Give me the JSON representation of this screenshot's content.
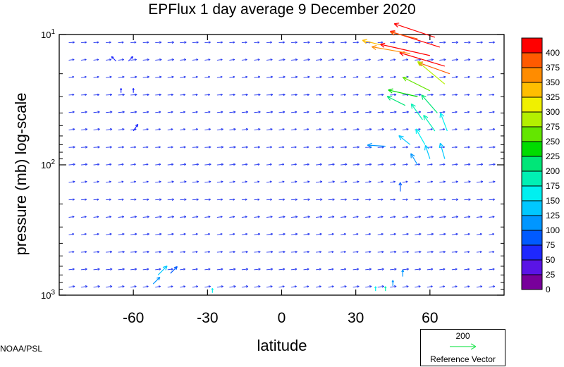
{
  "title": "EPFlux  1 day average  9 December  2020",
  "credit": "NOAA/PSL",
  "reference": {
    "value": "200",
    "label": "Reference Vector",
    "color": "#2ee65a"
  },
  "chart_data": {
    "type": "quiver",
    "title": "EPFlux  1 day average  9 December  2020",
    "xlabel": "latitude",
    "ylabel": "pressure (mb)  log-scale",
    "xlim": [
      -90,
      90
    ],
    "ylim": [
      1000,
      10
    ],
    "yscale": "log",
    "xticks": [
      -60,
      -30,
      0,
      30,
      60
    ],
    "xtick_labels": [
      "-60",
      "-30",
      "0",
      "30",
      "60"
    ],
    "yticks": [
      10,
      100,
      1000
    ],
    "ytick_labels": [
      {
        "base": "10",
        "exp": "1"
      },
      {
        "base": "10",
        "exp": "2"
      },
      {
        "base": "10",
        "exp": "3"
      }
    ],
    "colorbar": {
      "levels": [
        "400",
        "375",
        "350",
        "325",
        "300",
        "275",
        "250",
        "225",
        "200",
        "175",
        "150",
        "125",
        "100",
        "75",
        "50",
        "25",
        "0"
      ],
      "colors": [
        "#ff0000",
        "#ff5a00",
        "#ff8c00",
        "#ffbe00",
        "#f0f000",
        "#b4f000",
        "#64e600",
        "#00dc00",
        "#00e678",
        "#00f0b4",
        "#00f0f0",
        "#00c8ff",
        "#0096ff",
        "#005aff",
        "#1e28ff",
        "#5a14e6",
        "#78009b"
      ]
    },
    "vectors": [
      {
        "lat": 62,
        "p": 10.5,
        "u": -18,
        "v": 6,
        "mag": 410
      },
      {
        "lat": 64,
        "p": 12.5,
        "u": -22,
        "v": 7,
        "mag": 410
      },
      {
        "lat": 60,
        "p": 14.5,
        "u": -22,
        "v": 5,
        "mag": 400
      },
      {
        "lat": 66,
        "p": 17.5,
        "u": -20,
        "v": 6,
        "mag": 400
      },
      {
        "lat": 68,
        "p": 20,
        "u": -14,
        "v": 5,
        "mag": 390
      },
      {
        "lat": 55,
        "p": 10.8,
        "u": -12,
        "v": 3,
        "mag": 380
      },
      {
        "lat": 52,
        "p": 14,
        "u": -17,
        "v": 3,
        "mag": 360
      },
      {
        "lat": 40,
        "p": 12,
        "u": -8,
        "v": 2,
        "mag": 330
      },
      {
        "lat": 66,
        "p": 24,
        "u": -12,
        "v": 10,
        "mag": 290
      },
      {
        "lat": 60,
        "p": 27,
        "u": -12,
        "v": 6,
        "mag": 260
      },
      {
        "lat": 55,
        "p": 30,
        "u": -13,
        "v": 3,
        "mag": 230
      },
      {
        "lat": 50,
        "p": 35,
        "u": -8,
        "v": 4,
        "mag": 210
      },
      {
        "lat": 63,
        "p": 40,
        "u": -7,
        "v": 8,
        "mag": 200
      },
      {
        "lat": 57,
        "p": 45,
        "u": -5,
        "v": 7,
        "mag": 180
      },
      {
        "lat": 62,
        "p": 55,
        "u": -5,
        "v": 7,
        "mag": 175
      },
      {
        "lat": 67,
        "p": 55,
        "u": -3,
        "v": 8,
        "mag": 160
      },
      {
        "lat": 58,
        "p": 70,
        "u": -4,
        "v": 7,
        "mag": 150
      },
      {
        "lat": 52,
        "p": 70,
        "u": -5,
        "v": 4,
        "mag": 130
      },
      {
        "lat": 42,
        "p": 72,
        "u": -8,
        "v": 0.5,
        "mag": 110
      },
      {
        "lat": 60,
        "p": 90,
        "u": -2,
        "v": 6,
        "mag": 140
      },
      {
        "lat": 66,
        "p": 90,
        "u": -2,
        "v": 7,
        "mag": 135
      },
      {
        "lat": 55,
        "p": 100,
        "u": -3,
        "v": 5,
        "mag": 120
      },
      {
        "lat": 48,
        "p": 160,
        "u": 0,
        "v": 4,
        "mag": 80
      },
      {
        "lat": 49,
        "p": 720,
        "u": 0,
        "v": 3,
        "mag": 120
      },
      {
        "lat": 45,
        "p": 850,
        "u": 0,
        "v": 2.5,
        "mag": 110
      },
      {
        "lat": 42,
        "p": 930,
        "u": 0,
        "v": 2,
        "mag": 190
      },
      {
        "lat": 38,
        "p": 930,
        "u": 0,
        "v": 2,
        "mag": 150
      },
      {
        "lat": -50,
        "p": 700,
        "u": 4,
        "v": 4,
        "mag": 130
      },
      {
        "lat": -45,
        "p": 680,
        "u": 3,
        "v": 3,
        "mag": 90
      },
      {
        "lat": -52,
        "p": 820,
        "u": 3,
        "v": 3,
        "mag": 100
      },
      {
        "lat": -28,
        "p": 960,
        "u": 0,
        "v": 2,
        "mag": 160
      },
      {
        "lat": -62,
        "p": 16,
        "u": 2,
        "v": 2,
        "mag": 60
      },
      {
        "lat": -67,
        "p": 16,
        "u": -2,
        "v": 2,
        "mag": 60
      },
      {
        "lat": -60,
        "p": 55,
        "u": 2,
        "v": 3,
        "mag": 60
      },
      {
        "lat": -65,
        "p": 28,
        "u": 0,
        "v": 2,
        "mag": 55
      },
      {
        "lat": -60,
        "p": 28,
        "u": 0,
        "v": 2,
        "mag": 55
      }
    ]
  }
}
